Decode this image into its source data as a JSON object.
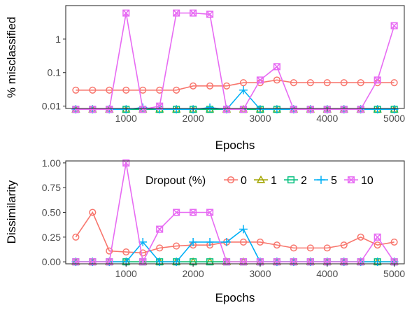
{
  "chart_data": [
    {
      "type": "line",
      "xlabel": "Epochs",
      "ylabel": "% misclassified",
      "y_scale": "log",
      "xlim": [
        100,
        5150
      ],
      "ylim": [
        0.0085,
        10
      ],
      "x_ticks": [
        1000,
        2000,
        3000,
        4000,
        5000
      ],
      "x_tick_labels": [
        "1000",
        "2000",
        "3000",
        "4000",
        "5000"
      ],
      "y_ticks": [
        0.01,
        0.1,
        1
      ],
      "y_tick_labels": [
        "0.01",
        "0.1",
        "1"
      ],
      "grid": false,
      "x": [
        250,
        500,
        750,
        1000,
        1250,
        1500,
        1750,
        2000,
        2250,
        2500,
        2750,
        3000,
        3250,
        3500,
        3750,
        4000,
        4250,
        4500,
        4750,
        5000
      ],
      "series": [
        {
          "name": "0",
          "color": "#F8766D",
          "marker": "circle",
          "values": [
            0.03,
            0.03,
            0.03,
            0.03,
            0.03,
            0.03,
            0.03,
            0.04,
            0.04,
            0.04,
            0.05,
            0.05,
            0.06,
            0.05,
            0.05,
            0.05,
            0.05,
            0.05,
            0.05,
            0.05
          ]
        },
        {
          "name": "1",
          "color": "#A3A500",
          "marker": "triangle",
          "values": [
            0.008,
            0.008,
            0.008,
            0.008,
            0.008,
            0.008,
            0.008,
            0.008,
            0.008,
            0.008,
            0.008,
            0.008,
            0.008,
            0.008,
            0.008,
            0.008,
            0.008,
            0.008,
            0.008,
            0.008
          ]
        },
        {
          "name": "2",
          "color": "#00BF7D",
          "marker": "square",
          "values": [
            0.008,
            0.008,
            0.008,
            0.008,
            0.008,
            0.008,
            0.008,
            0.008,
            0.008,
            0.008,
            0.008,
            0.008,
            0.008,
            0.008,
            0.008,
            0.008,
            0.008,
            0.008,
            0.008,
            0.008
          ]
        },
        {
          "name": "5",
          "color": "#00B0F6",
          "marker": "plus",
          "values": [
            0.008,
            0.008,
            0.008,
            0.008,
            0.009,
            0.008,
            0.008,
            0.008,
            0.009,
            0.008,
            0.03,
            0.008,
            0.008,
            0.008,
            0.008,
            0.008,
            0.008,
            0.008,
            0.008,
            0.008
          ]
        },
        {
          "name": "10",
          "color": "#E76BF3",
          "marker": "square-x",
          "values": [
            0.008,
            0.008,
            0.008,
            6,
            0.008,
            0.01,
            6,
            6,
            5.5,
            0.008,
            0.008,
            0.06,
            0.15,
            0.008,
            0.008,
            0.008,
            0.008,
            0.008,
            0.06,
            2.5
          ]
        }
      ]
    },
    {
      "type": "line",
      "xlabel": "Epochs",
      "ylabel": "Dissimilarity",
      "xlim": [
        100,
        5150
      ],
      "ylim": [
        -0.02,
        1.02
      ],
      "x_ticks": [
        1000,
        2000,
        3000,
        4000,
        5000
      ],
      "x_tick_labels": [
        "1000",
        "2000",
        "3000",
        "4000",
        "5000"
      ],
      "y_ticks": [
        0,
        0.25,
        0.5,
        0.75,
        1
      ],
      "y_tick_labels": [
        "0.00",
        "0.25",
        "0.50",
        "0.75",
        "1.00"
      ],
      "grid": false,
      "legend": {
        "title": "Dropout (%)",
        "position": "top-right",
        "orientation": "horizontal"
      },
      "x": [
        250,
        500,
        750,
        1000,
        1250,
        1500,
        1750,
        2000,
        2250,
        2500,
        2750,
        3000,
        3250,
        3500,
        3750,
        4000,
        4250,
        4500,
        4750,
        5000
      ],
      "series": [
        {
          "name": "0",
          "color": "#F8766D",
          "marker": "circle",
          "values": [
            0.25,
            0.5,
            0.11,
            0.1,
            0.09,
            0.14,
            0.16,
            0.17,
            0.17,
            0.2,
            0.2,
            0.2,
            0.17,
            0.14,
            0.14,
            0.14,
            0.17,
            0.25,
            0.17,
            0.2
          ]
        },
        {
          "name": "1",
          "color": "#A3A500",
          "marker": "triangle",
          "values": [
            0,
            0,
            0,
            0,
            0,
            0,
            0,
            0,
            0,
            0,
            0,
            0,
            0,
            0,
            0,
            0,
            0,
            0,
            0,
            0
          ]
        },
        {
          "name": "2",
          "color": "#00BF7D",
          "marker": "square",
          "values": [
            0,
            0,
            0,
            0,
            0,
            0,
            0,
            0,
            0,
            0,
            0,
            0,
            0,
            0,
            0,
            0,
            0,
            0,
            0,
            0
          ]
        },
        {
          "name": "5",
          "color": "#00B0F6",
          "marker": "plus",
          "values": [
            0,
            0,
            0,
            0,
            0.2,
            0,
            0,
            0.2,
            0.2,
            0.2,
            0.33,
            0,
            0,
            0,
            0,
            0,
            0,
            0,
            0,
            0
          ]
        },
        {
          "name": "10",
          "color": "#E76BF3",
          "marker": "square-x",
          "values": [
            0,
            0,
            0,
            1,
            0,
            0.33,
            0.5,
            0.5,
            0.5,
            0,
            0,
            0,
            0,
            0,
            0,
            0,
            0,
            0,
            0.25,
            0
          ]
        }
      ]
    }
  ]
}
